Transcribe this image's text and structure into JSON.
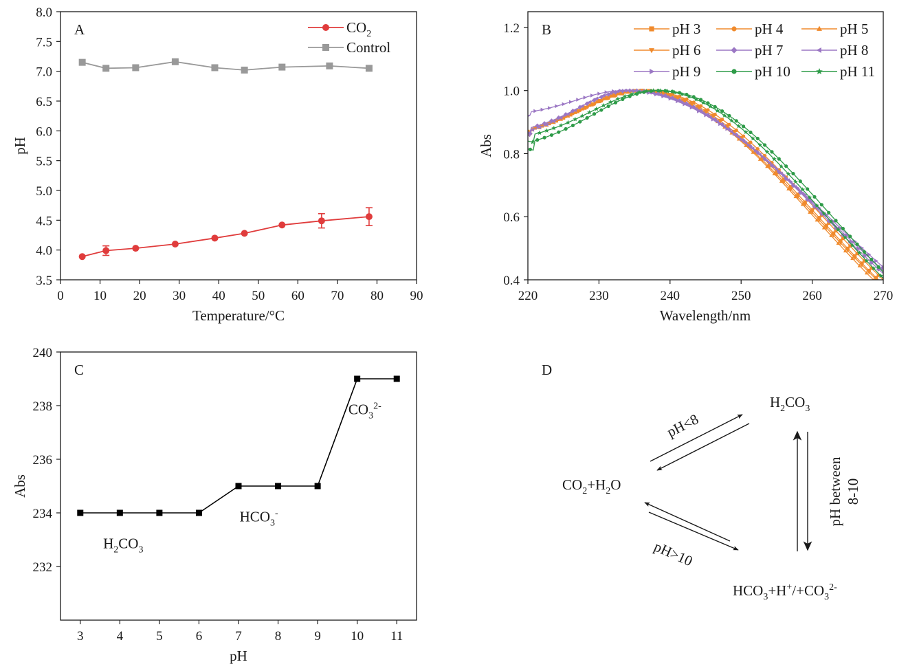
{
  "chart_data": [
    {
      "panel": "A",
      "type": "line",
      "xlabel": "Temperature/°C",
      "ylabel": "pH",
      "xlim": [
        0,
        90
      ],
      "ylim": [
        3.5,
        8.0
      ],
      "xticks": [
        "0",
        "10",
        "20",
        "30",
        "40",
        "50",
        "60",
        "70",
        "80",
        "90"
      ],
      "yticks": [
        "3.5",
        "4.0",
        "4.5",
        "5.0",
        "5.5",
        "6.0",
        "6.5",
        "7.0",
        "7.5",
        "8.0"
      ],
      "legend": "top-right",
      "series": [
        {
          "name": "CO",
          "name_sub": "2",
          "color": "#e03c3c",
          "marker": "circle",
          "x": [
            5.5,
            11.5,
            19,
            29,
            39,
            46.5,
            56,
            66,
            78
          ],
          "y": [
            3.89,
            3.99,
            4.03,
            4.1,
            4.2,
            4.28,
            4.42,
            4.49,
            4.56
          ],
          "err": [
            0,
            0.08,
            0,
            0,
            0,
            0,
            0,
            0.12,
            0.15
          ]
        },
        {
          "name": "Control",
          "color": "#999999",
          "marker": "square",
          "x": [
            5.5,
            11.5,
            19,
            29,
            39,
            46.5,
            56,
            68,
            78
          ],
          "y": [
            7.15,
            7.05,
            7.06,
            7.16,
            7.06,
            7.02,
            7.07,
            7.09,
            7.05
          ]
        }
      ]
    },
    {
      "panel": "B",
      "type": "line",
      "xlabel": "Wavelength/nm",
      "ylabel": "Abs",
      "xlim": [
        220,
        270
      ],
      "ylim": [
        0.4,
        1.25
      ],
      "xticks": [
        "220",
        "230",
        "240",
        "250",
        "260",
        "270"
      ],
      "yticks": [
        "0.4",
        "0.6",
        "0.8",
        "1.0",
        "1.2"
      ],
      "legend": "top-right",
      "series": [
        {
          "name": "pH 3",
          "color": "#f08a2c",
          "marker": "square",
          "peak": 236.0,
          "start": 0.87,
          "dip": 0.855,
          "dipx": 220.5,
          "end": 0.385
        },
        {
          "name": "pH 4",
          "color": "#f08a2c",
          "marker": "circle",
          "peak": 236.5,
          "start": 0.87,
          "dip": 0.86,
          "dipx": 220.5,
          "end": 0.4
        },
        {
          "name": "pH 5",
          "color": "#f08a2c",
          "marker": "triangle",
          "peak": 235.5,
          "start": 0.86,
          "dip": 0.85,
          "dipx": 220.5,
          "end": 0.37
        },
        {
          "name": "pH 6",
          "color": "#f08a2c",
          "marker": "triangle-down",
          "peak": 235.5,
          "start": 0.865,
          "dip": 0.855,
          "dipx": 220.5,
          "end": 0.38
        },
        {
          "name": "pH 7",
          "color": "#9b77c4",
          "marker": "diamond",
          "peak": 234.5,
          "start": 0.87,
          "dip": 0.86,
          "dipx": 220.5,
          "end": 0.42
        },
        {
          "name": "pH 8",
          "color": "#9b77c4",
          "marker": "triangle-left",
          "peak": 234.0,
          "start": 0.86,
          "dip": 0.85,
          "dipx": 220.5,
          "end": 0.43
        },
        {
          "name": "pH 9",
          "color": "#9b77c4",
          "marker": "triangle-right",
          "peak": 233.5,
          "start": 0.92,
          "dip": 0.92,
          "dipx": 220.5,
          "end": 0.44
        },
        {
          "name": "pH 10",
          "color": "#2e9b48",
          "marker": "circle",
          "peak": 238.5,
          "start": 0.815,
          "dip": 0.81,
          "dipx": 221.0,
          "end": 0.425
        },
        {
          "name": "pH 11",
          "color": "#2e9b48",
          "marker": "star",
          "peak": 238.0,
          "start": 0.84,
          "dip": 0.835,
          "dipx": 221.0,
          "end": 0.405
        }
      ]
    },
    {
      "panel": "C",
      "type": "line",
      "xlabel": "pH",
      "ylabel": "Abs",
      "xlim": [
        2.5,
        11.5
      ],
      "ylim": [
        230,
        240
      ],
      "xticks": [
        "3",
        "4",
        "5",
        "6",
        "7",
        "8",
        "9",
        "10",
        "11"
      ],
      "yticks": [
        "232",
        "234",
        "236",
        "238",
        "240"
      ],
      "series": [
        {
          "color": "#000000",
          "marker": "square",
          "x": [
            3,
            4,
            5,
            6,
            7,
            8,
            9,
            10,
            11
          ],
          "y": [
            234,
            234,
            234,
            234,
            235,
            235,
            235,
            239,
            239
          ]
        }
      ],
      "annotations": [
        {
          "base": "H",
          "sub1": "2",
          "mid": "CO",
          "sub2": "3",
          "sup": "",
          "x": 4.1,
          "y": 233.5
        },
        {
          "base": "HCO",
          "sub1": "3",
          "mid": "",
          "sub2": "",
          "sup": "-",
          "x": 7.55,
          "y": 234.5
        },
        {
          "base": "CO",
          "sub1": "3",
          "mid": "",
          "sub2": "",
          "sup": "2-",
          "x": 10.3,
          "y": 238.5
        }
      ]
    }
  ],
  "panel_labels": {
    "a": "A",
    "b": "B",
    "c": "C",
    "d": "D"
  },
  "diagram": {
    "h2co3": {
      "a": "H",
      "a_sub": "2",
      "b": "CO",
      "b_sub": "3"
    },
    "co2h2o": {
      "a": "CO",
      "a_sub": "2",
      "b": "+H",
      "b_sub": "2",
      "c": "O"
    },
    "hco3": {
      "a": "HCO",
      "a_sub": "3",
      "b": "+H",
      "b_sup": "+",
      "c": "/+CO",
      "c_sub": "3",
      "c_sup": "2-"
    },
    "label_lt8": "pH<8",
    "label_gt10": "pH>10",
    "label_between1": "pH between",
    "label_between2": "8-10"
  }
}
